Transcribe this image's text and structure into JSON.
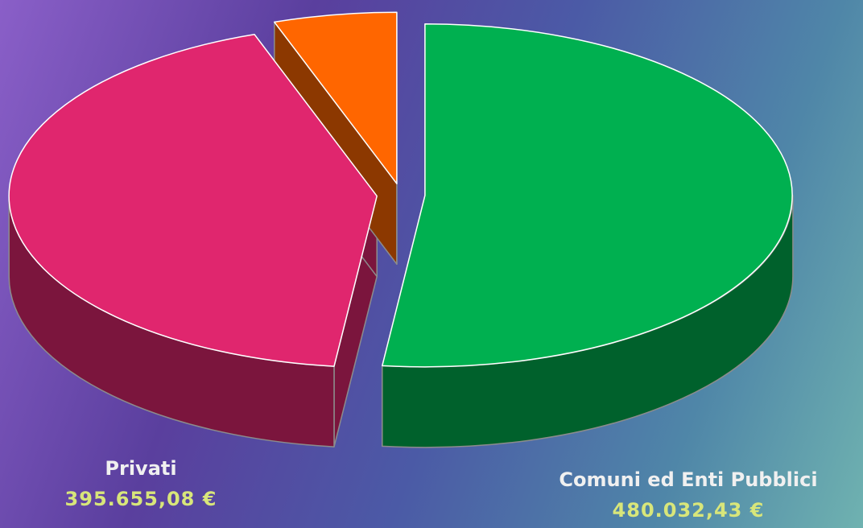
{
  "chart_data": {
    "type": "pie3d",
    "categories": [
      "Comuni ed Enti Pubblici",
      "Privati",
      null
    ],
    "values": [
      480032.43,
      395655.08,
      50000
    ],
    "value_labels": [
      "480.032,43 €",
      "395.655,08 €",
      null
    ],
    "colors": [
      "#00b050",
      "#e0266e",
      "#ff6600"
    ]
  }
}
